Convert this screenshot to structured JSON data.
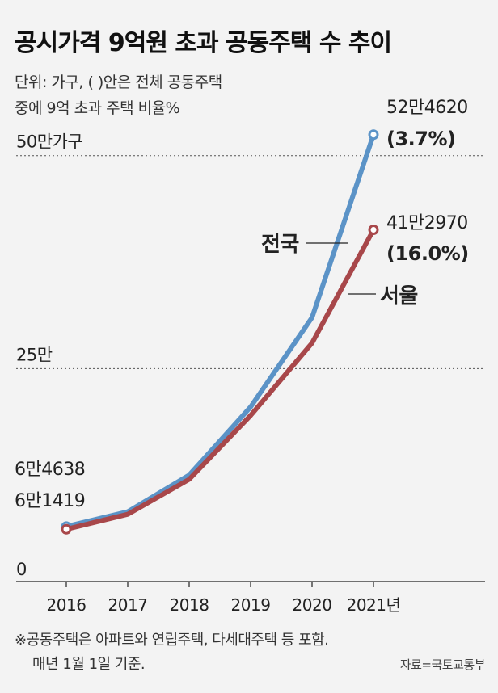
{
  "title": "공시가격 9억원 초과 공동주택 수 추이",
  "unit_line1": "단위: 가구, (    )안은 전체 공동주택",
  "unit_line2": "중에 9억 초과 주택 비율%",
  "footnote_line1": "※공동주택은 아파트와 연립주택, 다세대주택 등 포함.",
  "footnote_line2": "매년 1월 1일 기준.",
  "source": "자료=국토교통부",
  "chart_data": {
    "type": "line",
    "x": [
      2016,
      2017,
      2018,
      2019,
      2020,
      2021
    ],
    "x_tick_labels": [
      "2016",
      "2017",
      "2018",
      "2019",
      "2020",
      "2021년"
    ],
    "ylim": [
      0,
      550000
    ],
    "y_ticks": [
      {
        "value": 0,
        "label": "0",
        "grid": false
      },
      {
        "value": 250000,
        "label": "25만",
        "grid": true
      },
      {
        "value": 500000,
        "label": "50만가구",
        "grid": true
      }
    ],
    "grid": "dotted horizontal at 25만 and 50만",
    "series": [
      {
        "name": "전국",
        "color": "#5b93c7",
        "values": [
          64638,
          82000,
          125000,
          205000,
          310000,
          524620
        ],
        "start_label": "6만4638",
        "end_label": "52만4620",
        "end_pct": "(3.7%)"
      },
      {
        "name": "서울",
        "color": "#a8474a",
        "values": [
          61419,
          79000,
          120000,
          195000,
          280000,
          412970
        ],
        "start_label": "6만1419",
        "end_label": "41만2970",
        "end_pct": "(16.0%)"
      }
    ]
  }
}
